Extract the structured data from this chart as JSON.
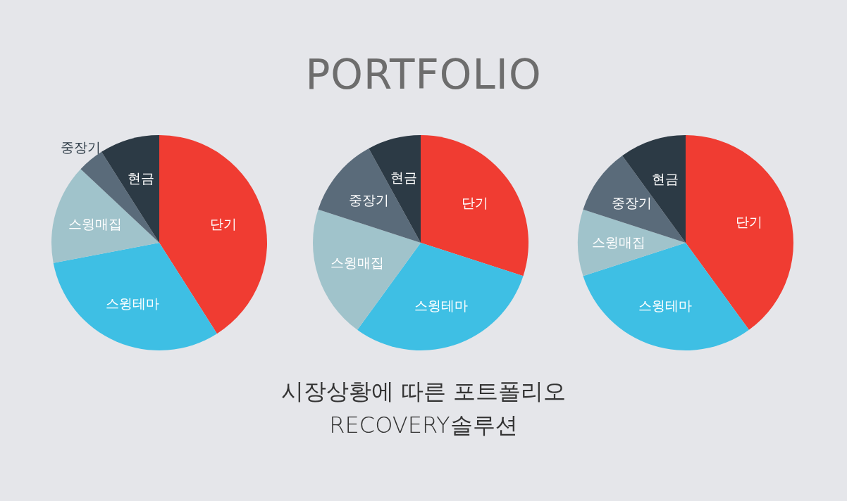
{
  "chart_data": [
    {
      "type": "pie",
      "categories": [
        "단기",
        "스윙테마",
        "스윙매집",
        "중장기",
        "현금"
      ],
      "values": [
        41,
        31,
        15,
        4,
        9
      ],
      "colors": [
        "#f03c32",
        "#3ebfe4",
        "#a0c3cb",
        "#5a6b7a",
        "#2c3a45"
      ]
    },
    {
      "type": "pie",
      "title": "PORTFOLIO",
      "annotations": [
        "시장상황에 따른 포트폴리오",
        "RECOVERY솔루션"
      ],
      "categories": [
        "단기",
        "스윙테마",
        "스윙매집",
        "중장기",
        "현금"
      ],
      "values": [
        30,
        30,
        20,
        12,
        8
      ],
      "colors": [
        "#f03c32",
        "#3ebfe4",
        "#a0c3cb",
        "#5a6b7a",
        "#2c3a45"
      ]
    },
    {
      "type": "pie",
      "categories": [
        "단기",
        "스윙테마",
        "스윙매집",
        "중장기",
        "현금"
      ],
      "values": [
        40,
        30,
        10,
        10,
        10
      ],
      "colors": [
        "#f03c32",
        "#3ebfe4",
        "#a0c3cb",
        "#5a6b7a",
        "#2c3a45"
      ]
    }
  ]
}
